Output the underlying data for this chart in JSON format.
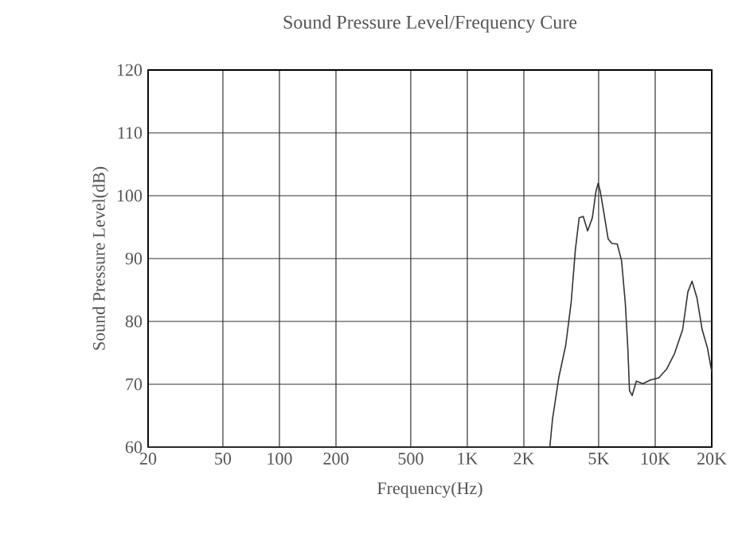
{
  "chart_data": {
    "type": "line",
    "title": "Sound Pressure Level/Frequency Cure",
    "xlabel": "Frequency(Hz)",
    "ylabel": "Sound Pressure Level(dB)",
    "log": "x",
    "grid": true,
    "marker": "none",
    "line_style": "solid",
    "xlim": [
      20,
      20000
    ],
    "ylim": [
      60,
      120
    ],
    "xticks": [
      20,
      50,
      100,
      200,
      500,
      {
        "value": 1000,
        "label": "1K"
      },
      {
        "value": 2000,
        "label": "2K"
      },
      {
        "value": 5000,
        "label": "5K"
      },
      {
        "value": 10000,
        "label": "10K"
      },
      {
        "value": 20000,
        "label": "20K"
      }
    ],
    "yticks": [
      60,
      70,
      80,
      90,
      100,
      110,
      120
    ],
    "x": [
      20,
      2750,
      2840,
      3070,
      3340,
      3570,
      3760,
      3940,
      4140,
      4370,
      4630,
      4840,
      4970,
      5100,
      5270,
      5620,
      5890,
      6280,
      6620,
      6930,
      7160,
      7300,
      7540,
      7940,
      8590,
      9460,
      10440,
      11500,
      12680,
      14000,
      14930,
      15710,
      16670,
      17780,
      18970,
      20000
    ],
    "series": [
      {
        "color": "#333333",
        "values": [
          60,
          60,
          64.4,
          71.1,
          76.2,
          83,
          91.4,
          96.5,
          96.7,
          94.4,
          96.5,
          100.7,
          102,
          100.7,
          98.2,
          93.1,
          92.4,
          92.3,
          89.7,
          83,
          75.4,
          69,
          68.2,
          70.5,
          70.1,
          70.7,
          71,
          72.4,
          74.9,
          78.7,
          84.7,
          86.4,
          83.8,
          78.7,
          75.8,
          72
        ]
      }
    ]
  }
}
